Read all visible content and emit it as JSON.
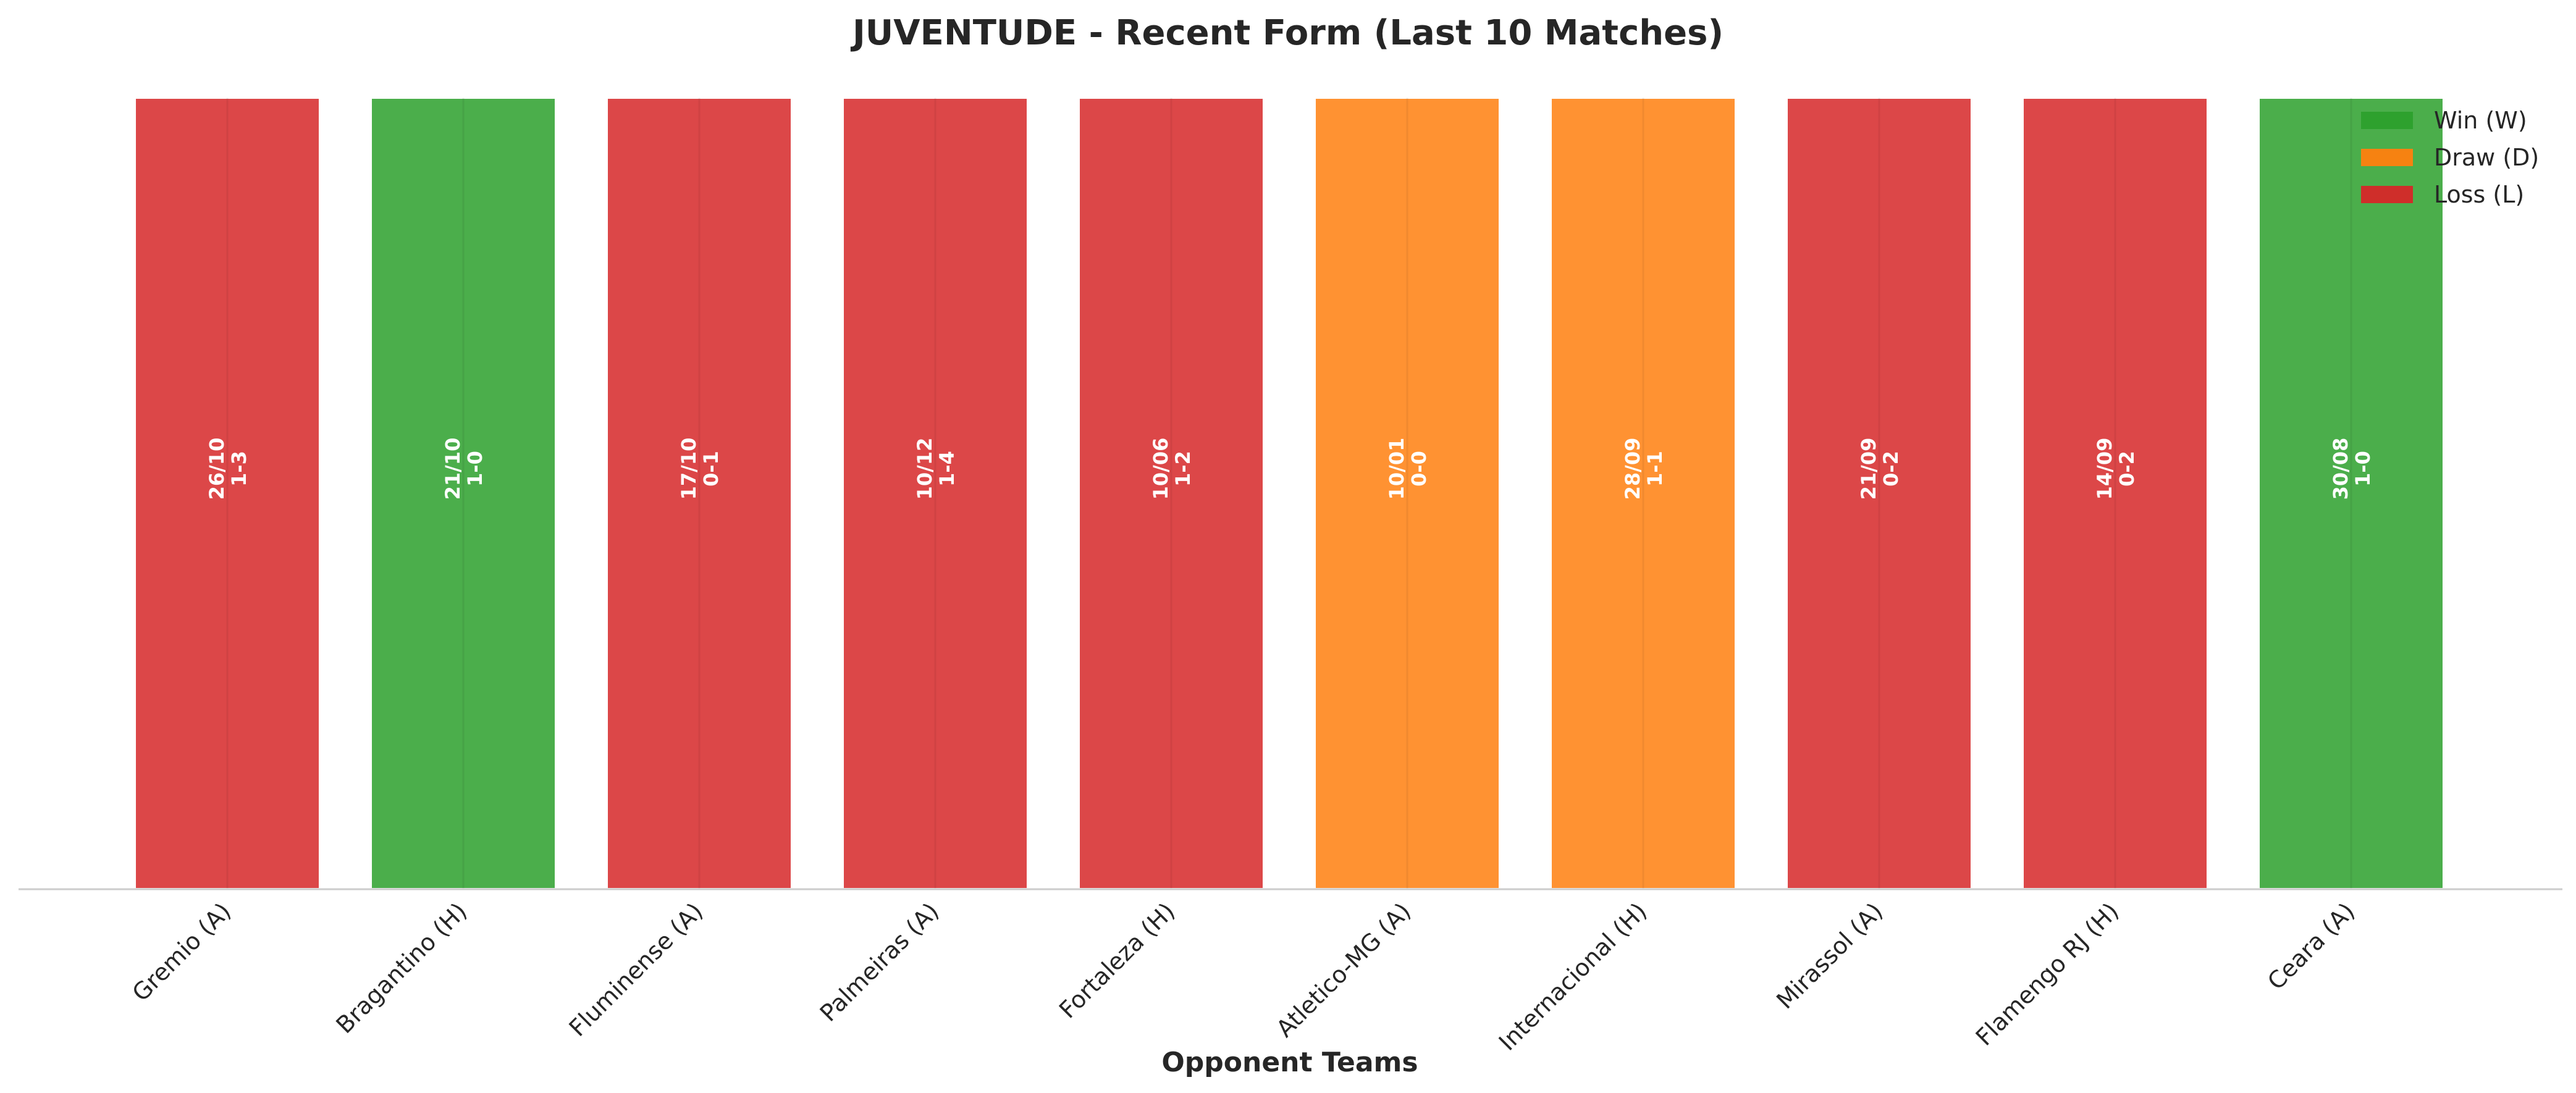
{
  "chart_data": {
    "type": "bar",
    "title": "JUVENTUDE - Recent Form (Last 10 Matches)",
    "xlabel": "Opponent Teams",
    "ylabel": "",
    "ylim": [
      0,
      1
    ],
    "grid": true,
    "legend_position": "top-right",
    "categories": [
      "Gremio (A)",
      "Bragantino (H)",
      "Fluminense (A)",
      "Palmeiras (A)",
      "Fortaleza (H)",
      "Atletico-MG (A)",
      "Internacional (H)",
      "Mirassol (A)",
      "Flamengo RJ (H)",
      "Ceara (A)"
    ],
    "values": [
      1,
      1,
      1,
      1,
      1,
      1,
      1,
      1,
      1,
      1
    ],
    "results": [
      "L",
      "W",
      "L",
      "L",
      "L",
      "D",
      "D",
      "L",
      "L",
      "W"
    ],
    "dates": [
      "26/10",
      "21/10",
      "17/10",
      "10/12",
      "10/06",
      "10/01",
      "28/09",
      "21/09",
      "14/09",
      "30/08"
    ],
    "scores": [
      "1-3",
      "1-0",
      "0-1",
      "1-4",
      "1-2",
      "0-0",
      "1-1",
      "0-2",
      "0-2",
      "1-0"
    ],
    "legend": [
      {
        "key": "W",
        "label": "Win (W)",
        "color": "#2ca02c"
      },
      {
        "key": "D",
        "label": "Draw (D)",
        "color": "#ff7f0e"
      },
      {
        "key": "L",
        "label": "Loss (L)",
        "color": "#d62728"
      }
    ]
  }
}
